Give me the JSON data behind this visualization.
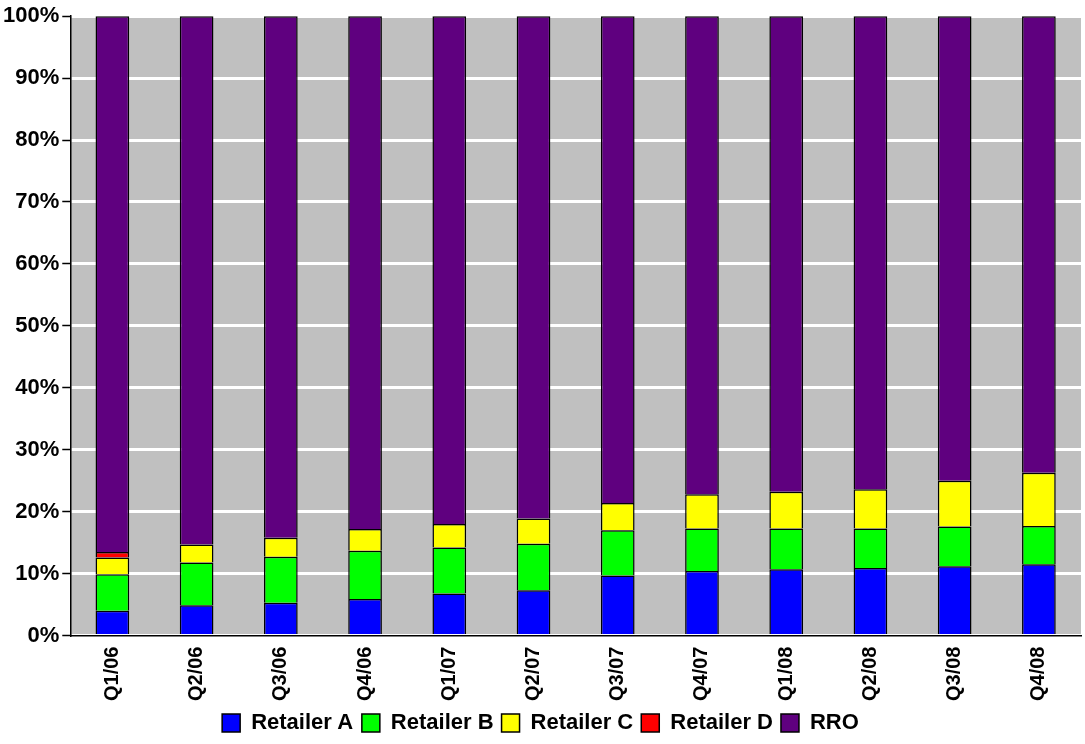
{
  "chart_data": {
    "type": "bar",
    "stacked": true,
    "categories": [
      "Q1/06",
      "Q2/06",
      "Q3/06",
      "Q4/06",
      "Q1/07",
      "Q2/07",
      "Q3/07",
      "Q4/07",
      "Q1/08",
      "Q2/08",
      "Q3/08",
      "Q4/08"
    ],
    "series": [
      {
        "name": "Retailer A",
        "color": "#0000ff",
        "values": [
          4.0,
          4.9,
          5.3,
          5.9,
          6.8,
          7.3,
          9.7,
          10.4,
          10.7,
          10.9,
          11.2,
          11.5
        ]
      },
      {
        "name": "Retailer B",
        "color": "#00ff00",
        "values": [
          5.9,
          6.9,
          7.4,
          7.8,
          7.4,
          7.5,
          7.3,
          6.9,
          6.6,
          6.4,
          6.4,
          6.2
        ]
      },
      {
        "name": "Retailer C",
        "color": "#ffff00",
        "values": [
          2.7,
          2.9,
          3.1,
          3.5,
          3.8,
          4.1,
          4.4,
          5.5,
          5.9,
          6.3,
          7.4,
          8.6
        ]
      },
      {
        "name": "Retailer D",
        "color": "#ff0000",
        "values": [
          0.9,
          0,
          0,
          0,
          0,
          0,
          0,
          0,
          0,
          0,
          0,
          0
        ]
      },
      {
        "name": "RRO",
        "color": "#5f007f",
        "values": [
          86.5,
          85.3,
          84.2,
          82.8,
          82.0,
          81.1,
          78.6,
          77.2,
          76.8,
          76.4,
          75.0,
          73.7
        ]
      }
    ],
    "ylim": [
      0,
      100
    ],
    "yticks": [
      {
        "value": 0,
        "label": "0%"
      },
      {
        "value": 10,
        "label": "10%"
      },
      {
        "value": 20,
        "label": "20%"
      },
      {
        "value": 30,
        "label": "30%"
      },
      {
        "value": 40,
        "label": "40%"
      },
      {
        "value": 50,
        "label": "50%"
      },
      {
        "value": 60,
        "label": "60%"
      },
      {
        "value": 70,
        "label": "70%"
      },
      {
        "value": 80,
        "label": "80%"
      },
      {
        "value": 90,
        "label": "90%"
      },
      {
        "value": 100,
        "label": "100%"
      }
    ],
    "grid": "y",
    "legend": "bottom"
  }
}
